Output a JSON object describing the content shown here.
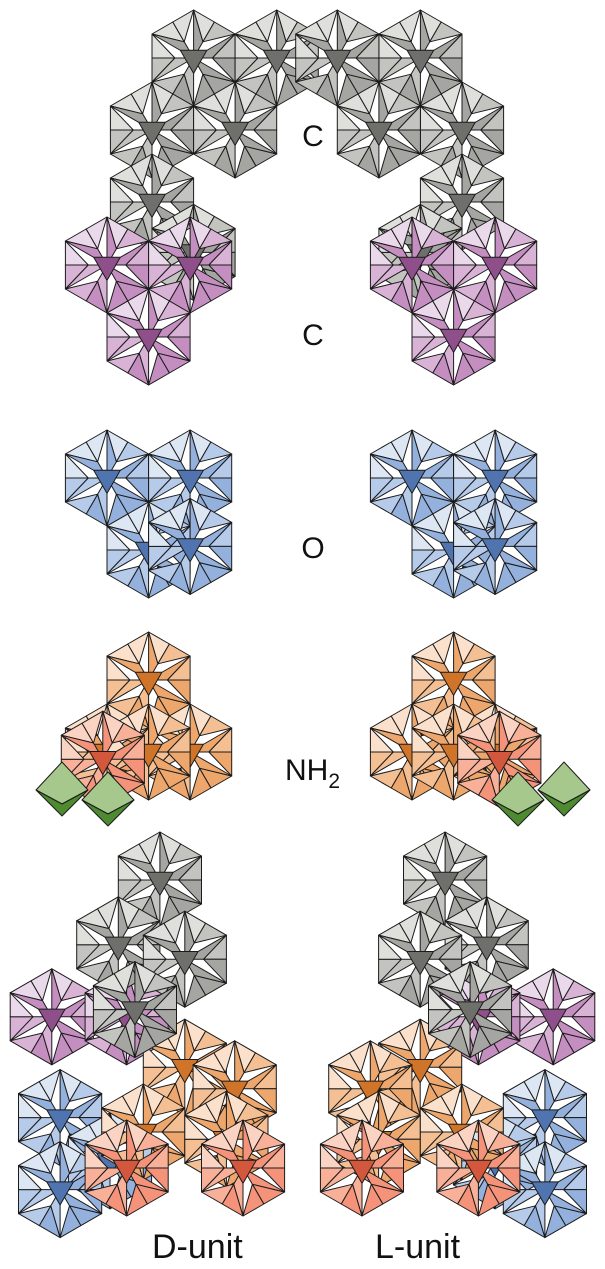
{
  "figure": {
    "rows": [
      {
        "id": "c1",
        "label": "C",
        "color": "gray"
      },
      {
        "id": "c2",
        "label": "C",
        "color": "purple"
      },
      {
        "id": "o",
        "label": "O",
        "color": "blue"
      },
      {
        "id": "nh2",
        "label": "NH",
        "label_sub": "2",
        "color": "orange",
        "accent": "green"
      }
    ],
    "units": {
      "d": "D-unit",
      "l": "L-unit"
    }
  },
  "palette": {
    "gray": [
      "#dfe0dc",
      "#c3c4bf",
      "#a5a6a1",
      "#6f706c"
    ],
    "purple": [
      "#ead9ea",
      "#d9b3d6",
      "#c48fc0",
      "#8e4f8a"
    ],
    "blue": [
      "#dde6f3",
      "#b6cbea",
      "#93b1dc",
      "#4f74b0"
    ],
    "orange": [
      "#fbe1cb",
      "#f4c093",
      "#eda66b",
      "#cf7428"
    ],
    "salmon": [
      "#fbd3c3",
      "#f8b198",
      "#f4927a",
      "#d2573c"
    ],
    "green": [
      "#d6e6c8",
      "#a7c88d",
      "#8ab070",
      "#4d8a30"
    ]
  }
}
